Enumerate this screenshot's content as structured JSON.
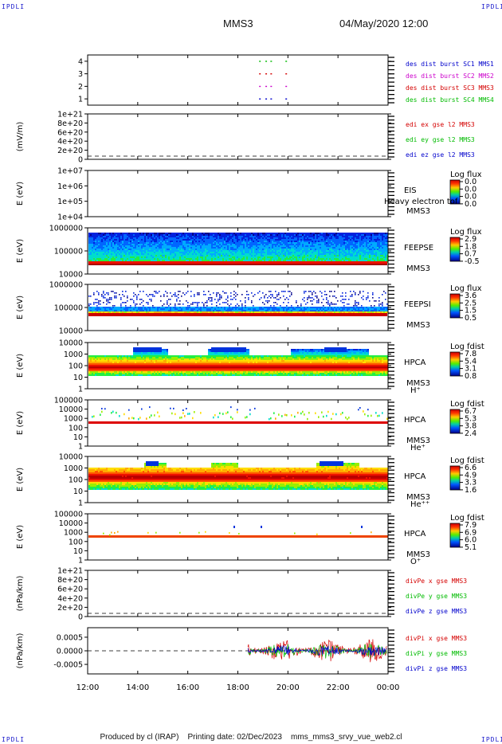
{
  "corner_label": "IPDLI",
  "header": {
    "mission": "MMS3",
    "datetime": "04/May/2020 12:00"
  },
  "footer": "Produced by cl (IRAP)    Printing date: 02/Dec/2023    mms_mms3_srvy_vue_web2.cl",
  "colors": {
    "mms1": "#0000cc",
    "mms2": "#cc00cc",
    "mms3": "#d40000",
    "mms4": "#00bb00",
    "text": "#000000"
  },
  "chart_data": {
    "type": "multi-panel",
    "x_axis": {
      "ticks": [
        "12:00",
        "14:00",
        "16:00",
        "18:00",
        "20:00",
        "22:00",
        "00:00"
      ],
      "range_hours": [
        12,
        24
      ]
    },
    "panels": [
      {
        "id": "burst",
        "yticks": [
          "1",
          "2",
          "3",
          "4"
        ],
        "ylim": [
          0.5,
          4.5
        ],
        "ylabel": "",
        "legend": [
          {
            "text": "des dist burst SC1 MMS1",
            "color": "#0000cc"
          },
          {
            "text": "des dist burst SC2 MMS2",
            "color": "#cc00cc"
          },
          {
            "text": "des dist burst SC3 MMS3",
            "color": "#d40000"
          },
          {
            "text": "des dist burst SC4 MMS4",
            "color": "#00bb00"
          }
        ],
        "bursts": [
          {
            "level": 4,
            "times": [
              18.85,
              19.1,
              19.3,
              19.9
            ],
            "color": "#00bb00"
          },
          {
            "level": 3,
            "times": [
              18.85,
              19.1,
              19.3,
              19.9
            ],
            "color": "#d40000"
          },
          {
            "level": 2,
            "times": [
              18.85,
              19.1,
              19.3,
              19.9
            ],
            "color": "#cc00cc"
          },
          {
            "level": 1,
            "times": [
              18.85,
              19.1,
              19.3,
              19.9
            ],
            "color": "#0000cc"
          }
        ]
      },
      {
        "id": "edi",
        "yticks": [
          "0",
          "2e+20",
          "4e+20",
          "6e+20",
          "8e+20",
          "1e+21"
        ],
        "ylabel": "(mV/m)",
        "legend": [
          {
            "text": "edi ex gse l2 MMS3",
            "color": "#d40000"
          },
          {
            "text": "edi ey gse l2 MMS3",
            "color": "#00bb00"
          },
          {
            "text": "edi ez gse l2 MMS3",
            "color": "#0000cc"
          }
        ]
      },
      {
        "id": "eis",
        "yticks": [
          "1e+04",
          "1e+05",
          "1e+06",
          "1e+07"
        ],
        "ylabel": "E (eV)",
        "side": [
          "EIS",
          "MMS3"
        ],
        "overlay": "Heavy electron tof",
        "colorbar": {
          "title": "Log flux",
          "labels": [
            "0.0",
            "0.0",
            "0.0",
            "0.0"
          ]
        }
      },
      {
        "id": "feepse",
        "yticks": [
          "10000",
          "100000",
          "1000000"
        ],
        "ylabel": "E (eV)",
        "side": [
          "FEEPSE",
          "MMS3"
        ],
        "colorbar": {
          "title": "Log flux",
          "labels": [
            "2.9",
            "1.8",
            "0.7",
            "-0.5"
          ]
        }
      },
      {
        "id": "feepsi",
        "yticks": [
          "10000",
          "100000",
          "1000000"
        ],
        "ylabel": "E (eV)",
        "side": [
          "FEEPSI",
          "MMS3"
        ],
        "colorbar": {
          "title": "Log flux",
          "labels": [
            "3.6",
            "2.5",
            "1.5",
            "0.5"
          ]
        }
      },
      {
        "id": "hpca_h",
        "yticks": [
          "1",
          "10",
          "100",
          "1000",
          "10000"
        ],
        "ylabel": "E (eV)",
        "side": [
          "HPCA",
          "MMS3"
        ],
        "species": "H⁺",
        "colorbar": {
          "title": "Log fdist",
          "labels": [
            "7.8",
            "5.4",
            "3.1",
            "0.8"
          ]
        }
      },
      {
        "id": "hpca_he",
        "yticks": [
          "1",
          "10",
          "100",
          "1000",
          "10000",
          "100000"
        ],
        "ylabel": "E (eV)",
        "side": [
          "HPCA",
          "MMS3"
        ],
        "species": "He⁺",
        "colorbar": {
          "title": "Log fdist",
          "labels": [
            "6.7",
            "5.3",
            "3.8",
            "2.4"
          ]
        }
      },
      {
        "id": "hpca_hepp",
        "yticks": [
          "1",
          "10",
          "100",
          "1000",
          "10000"
        ],
        "ylabel": "E (eV)",
        "side": [
          "HPCA",
          "MMS3"
        ],
        "species": "He⁺⁺",
        "colorbar": {
          "title": "Log fdist",
          "labels": [
            "6.6",
            "4.9",
            "3.3",
            "1.6"
          ]
        }
      },
      {
        "id": "hpca_o",
        "yticks": [
          "1",
          "10",
          "100",
          "1000",
          "10000",
          "100000"
        ],
        "ylabel": "E (eV)",
        "side": [
          "HPCA",
          "MMS3"
        ],
        "species": "O⁺",
        "colorbar": {
          "title": "Log fdist",
          "labels": [
            "7.9",
            "6.9",
            "6.0",
            "5.1"
          ]
        }
      },
      {
        "id": "divpe",
        "yticks": [
          "0",
          "2e+20",
          "4e+20",
          "6e+20",
          "8e+20",
          "1e+21"
        ],
        "ylabel": "(nPa/km)",
        "legend": [
          {
            "text": "divPe x gse MMS3",
            "color": "#d40000"
          },
          {
            "text": "divPe y gse MMS3",
            "color": "#00bb00"
          },
          {
            "text": "divPe z gse MMS3",
            "color": "#0000cc"
          }
        ]
      },
      {
        "id": "divpi",
        "yticks": [
          "-0.0005",
          "0.0000",
          "0.0005"
        ],
        "ylim": [
          -0.00085,
          0.00085
        ],
        "ylabel": "(nPa/km)",
        "data_start_hour": 18.4,
        "legend": [
          {
            "text": "divPi x gse MMS3",
            "color": "#d40000"
          },
          {
            "text": "divPi y gse MMS3",
            "color": "#00bb00"
          },
          {
            "text": "divPi z gse MMS3",
            "color": "#0000cc"
          }
        ]
      }
    ]
  }
}
